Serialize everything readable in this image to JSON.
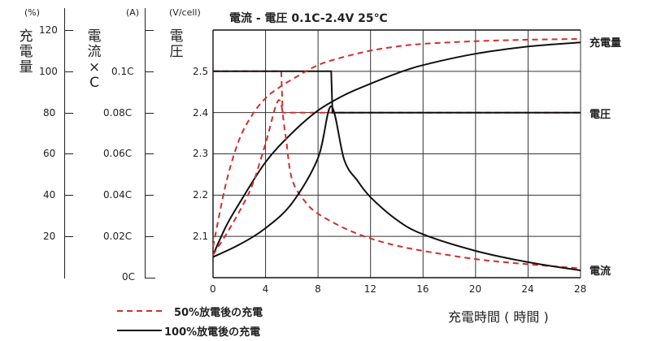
{
  "chart_data": {
    "type": "line",
    "title": "電流 - 電圧 0.1C-2.4V 25℃",
    "xlabel": "充電時間 ( 時間 )",
    "x_ticks": [
      "0",
      "4",
      "8",
      "12",
      "16",
      "20",
      "24",
      "28"
    ],
    "xlim": [
      0,
      28
    ],
    "grid": true,
    "axes": {
      "capacity": {
        "title": "充電量",
        "unit": "(%)",
        "ticks": [
          "120",
          "100",
          "80",
          "60",
          "40",
          "20"
        ],
        "range": [
          0,
          120
        ]
      },
      "current": {
        "title": "電流×C",
        "title_chars": [
          "電",
          "流",
          "×",
          "C"
        ],
        "unit": "(A)",
        "ticks": [
          "0.1C",
          "0.08C",
          "0.06C",
          "0.04C",
          "0.02C",
          "0C"
        ],
        "range": [
          0,
          0.12
        ]
      },
      "voltage": {
        "title": "電圧",
        "unit": "(V/cell)",
        "ticks": [
          "2.5",
          "2.4",
          "2.3",
          "2.2",
          "2.1"
        ],
        "range": [
          2.0,
          2.6
        ]
      }
    },
    "curve_labels": {
      "capacity": "充電量",
      "voltage": "電圧",
      "current": "電流"
    },
    "legend": {
      "position": "bottom-left",
      "entries": [
        "50%放電後の充電",
        "100%放電後の充電"
      ]
    },
    "series": [
      {
        "name": "50%放電後の充電",
        "quantity": "voltage",
        "color": "#d0302c",
        "dash": true,
        "x": [
          0,
          5.2,
          5.3,
          28
        ],
        "y": [
          2.5,
          2.5,
          2.4,
          2.4
        ]
      },
      {
        "name": "100%放電後の充電",
        "quantity": "voltage",
        "color": "#111111",
        "dash": false,
        "x": [
          0,
          9,
          9.1,
          28
        ],
        "y": [
          2.5,
          2.5,
          2.4,
          2.4
        ]
      },
      {
        "name": "50%放電後の充電",
        "quantity": "capacity",
        "color": "#d0302c",
        "dash": true,
        "x": [
          0,
          1,
          2,
          3,
          4,
          5,
          6,
          8,
          10,
          12,
          14,
          16,
          20,
          24,
          28
        ],
        "y": [
          15,
          46,
          67,
          79,
          87,
          92,
          96,
          103,
          107,
          110,
          112,
          113.3,
          114.6,
          115.3,
          115.7
        ]
      },
      {
        "name": "100%放電後の充電",
        "quantity": "capacity",
        "color": "#111111",
        "dash": false,
        "x": [
          0,
          1,
          2,
          4,
          6,
          8,
          10,
          12,
          14,
          16,
          20,
          24,
          28
        ],
        "y": [
          11,
          25,
          36,
          56,
          70,
          81,
          88.5,
          94,
          99,
          103,
          108.5,
          112,
          114
        ]
      },
      {
        "name": "50%放電後の充電",
        "quantity": "current",
        "color": "#d0302c",
        "dash": true,
        "x": [
          0,
          1,
          2,
          3,
          4,
          5,
          5.5,
          6,
          7,
          8,
          10,
          12,
          14,
          16,
          20,
          24,
          28
        ],
        "y": [
          0.011,
          0.021,
          0.032,
          0.045,
          0.065,
          0.086,
          0.07,
          0.048,
          0.037,
          0.031,
          0.024,
          0.019,
          0.0155,
          0.013,
          0.009,
          0.0065,
          0.0045
        ]
      },
      {
        "name": "100%放電後の充電",
        "quantity": "current",
        "color": "#111111",
        "dash": false,
        "x": [
          0,
          2,
          4,
          6,
          8,
          9,
          10,
          11,
          12,
          14,
          16,
          20,
          24,
          28
        ],
        "y": [
          0.01,
          0.016,
          0.024,
          0.036,
          0.058,
          0.083,
          0.057,
          0.047,
          0.039,
          0.028,
          0.021,
          0.013,
          0.0075,
          0.0035
        ]
      }
    ]
  }
}
